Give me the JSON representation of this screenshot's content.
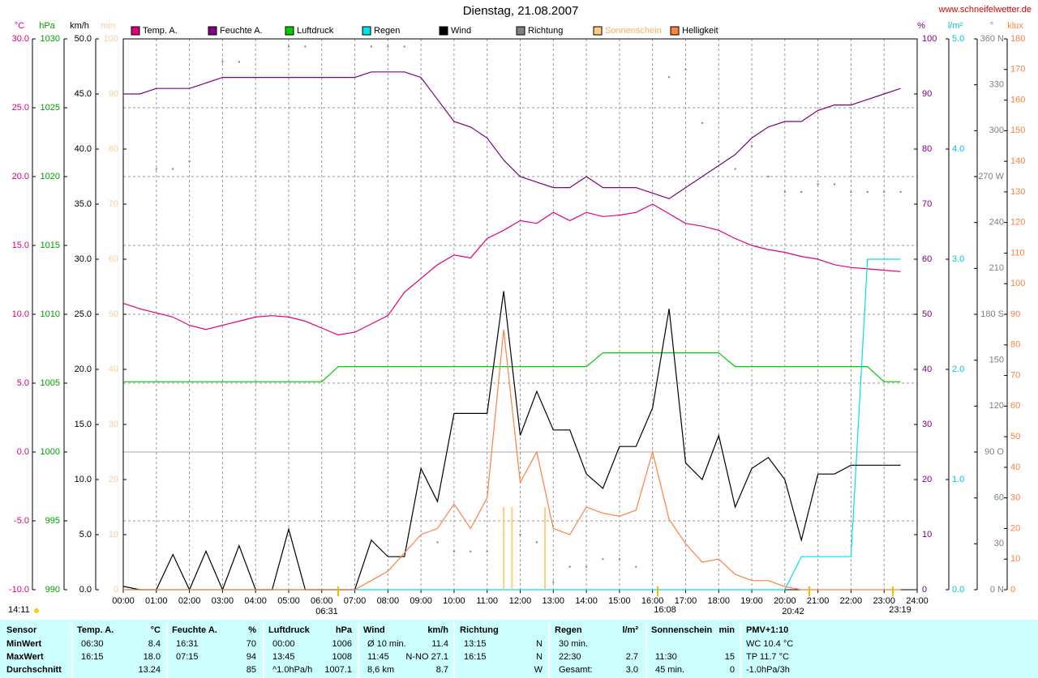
{
  "chart_data": {
    "type": "line",
    "title": "Dienstag, 21.08.2007",
    "source": "www.schneifelwetter.de",
    "grid": true,
    "grid_axis": "°C",
    "x": [
      0,
      0.5,
      1,
      1.5,
      2,
      2.5,
      3,
      3.5,
      4,
      4.5,
      5,
      5.5,
      6,
      6.5,
      7,
      7.5,
      8,
      8.5,
      9,
      9.5,
      10,
      10.5,
      11,
      11.5,
      12,
      12.5,
      13,
      13.5,
      14,
      14.5,
      15,
      15.5,
      16,
      16.5,
      17,
      17.5,
      18,
      18.5,
      19,
      19.5,
      20,
      20.5,
      21,
      21.5,
      22,
      22.5,
      23,
      23.5
    ],
    "xlim": [
      0,
      24
    ],
    "xticks": [
      {
        "value": 0,
        "label": "00:00"
      },
      {
        "value": 1,
        "label": "01:00"
      },
      {
        "value": 2,
        "label": "02:00"
      },
      {
        "value": 3,
        "label": "03:00"
      },
      {
        "value": 4,
        "label": "04:00"
      },
      {
        "value": 5,
        "label": "05:00"
      },
      {
        "value": 6,
        "label": "06:00"
      },
      {
        "value": 7,
        "label": "07:00"
      },
      {
        "value": 8,
        "label": "08:00"
      },
      {
        "value": 9,
        "label": "09:00"
      },
      {
        "value": 10,
        "label": "10:00"
      },
      {
        "value": 11,
        "label": "11:00"
      },
      {
        "value": 12,
        "label": "12:00"
      },
      {
        "value": 13,
        "label": "13:00"
      },
      {
        "value": 14,
        "label": "14:00"
      },
      {
        "value": 15,
        "label": "15:00"
      },
      {
        "value": 16,
        "label": "16:00"
      },
      {
        "value": 17,
        "label": "17:00"
      },
      {
        "value": 18,
        "label": "18:00"
      },
      {
        "value": 19,
        "label": "19:00"
      },
      {
        "value": 20,
        "label": "20:00"
      },
      {
        "value": 21,
        "label": "21:00"
      },
      {
        "value": 22,
        "label": "22:00"
      },
      {
        "value": 23,
        "label": "23:00"
      },
      {
        "value": 24,
        "label": "24:00"
      }
    ],
    "axes": [
      {
        "unit": "°C",
        "color": "#e0007a",
        "lim": [
          -10,
          30
        ],
        "ticks": [
          {
            "value": -10,
            "label": "-10.0"
          },
          {
            "value": -5,
            "label": "-5.0"
          },
          {
            "value": 0,
            "label": "0.0"
          },
          {
            "value": 5,
            "label": "5.0"
          },
          {
            "value": 10,
            "label": "10.0"
          },
          {
            "value": 15,
            "label": "15.0"
          },
          {
            "value": 20,
            "label": "20.0"
          },
          {
            "value": 25,
            "label": "25.0"
          },
          {
            "value": 30,
            "label": "30.0"
          }
        ]
      },
      {
        "unit": "hPa",
        "color": "#00a000",
        "lim": [
          990,
          1030
        ],
        "ticks": [
          990,
          995,
          1000,
          1005,
          1010,
          1015,
          1020,
          1025,
          1030
        ]
      },
      {
        "unit": "km/h",
        "color": "#000000",
        "lim": [
          0,
          50
        ],
        "ticks": [
          {
            "value": 0,
            "label": "0.0"
          },
          {
            "value": 5,
            "label": "5.0"
          },
          {
            "value": 10,
            "label": "10.0"
          },
          {
            "value": 15,
            "label": "15.0"
          },
          {
            "value": 20,
            "label": "20.0"
          },
          {
            "value": 25,
            "label": "25.0"
          },
          {
            "value": 30,
            "label": "30.0"
          },
          {
            "value": 35,
            "label": "35.0"
          },
          {
            "value": 40,
            "label": "40.0"
          },
          {
            "value": 45,
            "label": "45.0"
          },
          {
            "value": 50,
            "label": "50.0"
          }
        ]
      },
      {
        "unit": "min",
        "color": "#ffcc99",
        "lim": [
          0,
          100
        ],
        "ticks": [
          0,
          10,
          20,
          30,
          40,
          50,
          60,
          70,
          80,
          90,
          100
        ]
      },
      {
        "unit": "%",
        "color": "#800080",
        "lim": [
          0,
          100
        ],
        "ticks": [
          0,
          10,
          20,
          30,
          40,
          50,
          60,
          70,
          80,
          90,
          100
        ]
      },
      {
        "unit": "l/m²",
        "color": "#00c8c8",
        "lim": [
          0,
          5
        ],
        "ticks": [
          {
            "value": 0,
            "label": "0.0"
          },
          {
            "value": 1,
            "label": "1.0"
          },
          {
            "value": 2,
            "label": "2.0"
          },
          {
            "value": 3,
            "label": "3.0"
          },
          {
            "value": 4,
            "label": "4.0"
          },
          {
            "value": 5,
            "label": "5.0"
          }
        ]
      },
      {
        "unit": "°",
        "color": "#808080",
        "lim": [
          0,
          360
        ],
        "ticks": [
          {
            "value": 0,
            "label": "0 N"
          },
          30,
          60,
          {
            "value": 90,
            "label": "90 O"
          },
          120,
          150,
          {
            "value": 180,
            "label": "180 S"
          },
          210,
          240,
          {
            "value": 270,
            "label": "270 W"
          },
          300,
          330,
          {
            "value": 360,
            "label": "360 N"
          }
        ]
      },
      {
        "unit": "klux",
        "color": "#ff8040",
        "lim": [
          0,
          180
        ],
        "ticks": [
          0,
          10,
          20,
          30,
          40,
          50,
          60,
          70,
          80,
          90,
          100,
          110,
          120,
          130,
          140,
          150,
          160,
          170,
          180
        ]
      }
    ],
    "series": [
      {
        "name": "Temp. A.",
        "color": "#e0007a",
        "axis": "°C",
        "style": "line",
        "values": [
          10.8,
          10.4,
          10.1,
          9.8,
          9.2,
          8.9,
          9.2,
          9.5,
          9.8,
          9.9,
          9.8,
          9.5,
          9.0,
          8.5,
          8.7,
          9.3,
          9.9,
          11.6,
          12.6,
          13.6,
          14.3,
          14.1,
          15.5,
          16.1,
          16.8,
          16.6,
          17.4,
          16.8,
          17.4,
          17.1,
          17.2,
          17.4,
          18.0,
          17.3,
          16.6,
          16.4,
          16.1,
          15.5,
          15.0,
          14.7,
          14.5,
          14.2,
          14.0,
          13.6,
          13.4,
          13.3,
          13.2,
          13.1
        ]
      },
      {
        "name": "Feuchte A.",
        "color": "#800080",
        "axis": "%",
        "style": "line",
        "values": [
          90,
          90,
          91,
          91,
          91,
          92,
          93,
          93,
          93,
          93,
          93,
          93,
          93,
          93,
          93,
          94,
          94,
          94,
          93,
          89,
          85,
          84,
          82,
          78,
          75,
          74,
          73,
          73,
          75,
          73,
          73,
          73,
          72,
          71,
          73,
          75,
          77,
          79,
          82,
          84,
          85,
          85,
          87,
          88,
          88,
          89,
          90,
          91
        ]
      },
      {
        "name": "Luftdruck",
        "color": "#00cc00",
        "axis": "hPa",
        "style": "line",
        "values": [
          1005.1,
          1005.1,
          1005.1,
          1005.1,
          1005.1,
          1005.1,
          1005.1,
          1005.1,
          1005.1,
          1005.1,
          1005.1,
          1005.1,
          1005.1,
          1006.2,
          1006.2,
          1006.2,
          1006.2,
          1006.2,
          1006.2,
          1006.2,
          1006.2,
          1006.2,
          1006.2,
          1006.2,
          1006.2,
          1006.2,
          1006.2,
          1006.2,
          1006.2,
          1007.2,
          1007.2,
          1007.2,
          1007.2,
          1007.2,
          1007.2,
          1007.2,
          1007.2,
          1006.2,
          1006.2,
          1006.2,
          1006.2,
          1006.2,
          1006.2,
          1006.2,
          1006.2,
          1006.2,
          1005.1,
          1005.1
        ]
      },
      {
        "name": "Regen",
        "color": "#00e0e8",
        "axis": "l/m²",
        "style": "line",
        "values": [
          0,
          0,
          0,
          0,
          0,
          0,
          0,
          0,
          0,
          0,
          0,
          0,
          0,
          0,
          0,
          0,
          0,
          0,
          0,
          0,
          0,
          0,
          0,
          0,
          0,
          0,
          0,
          0,
          0,
          0,
          0,
          0,
          0,
          0,
          0,
          0,
          0,
          0,
          0,
          0,
          0,
          0.3,
          0.3,
          0.3,
          0.3,
          3.0,
          3.0,
          3.0
        ]
      },
      {
        "name": "Wind",
        "color": "#000000",
        "axis": "km/h",
        "style": "line",
        "values": [
          0.3,
          0,
          0,
          3.2,
          0,
          3.5,
          0,
          4.0,
          0,
          0,
          5.5,
          0,
          0,
          0,
          0,
          4.5,
          3.0,
          3.0,
          11.0,
          8.0,
          16.0,
          16.0,
          16.0,
          27.1,
          14.0,
          18.0,
          14.5,
          14.5,
          10.5,
          9.2,
          13.0,
          13.0,
          16.5,
          25.5,
          11.5,
          10.0,
          14.0,
          7.5,
          11.0,
          12.0,
          10.0,
          4.5,
          10.5,
          10.5,
          11.3,
          11.3,
          11.3,
          11.3
        ]
      },
      {
        "name": "Richtung",
        "color": "#808080",
        "axis": "°",
        "style": "dots",
        "values": [
          null,
          null,
          275,
          275,
          280,
          null,
          345,
          345,
          null,
          null,
          355,
          355,
          null,
          null,
          null,
          355,
          355,
          355,
          null,
          31,
          25,
          25,
          25,
          36,
          36,
          31,
          5,
          15,
          15,
          20,
          20,
          15,
          null,
          335,
          340,
          305,
          280,
          275,
          290,
          270,
          260,
          260,
          265,
          265,
          260,
          260,
          260,
          260
        ]
      },
      {
        "name": "Sonnenschein",
        "color": "#ffcc80",
        "axis": "min",
        "style": "bars",
        "x": [
          11.5,
          11.75,
          12.75
        ],
        "values": [
          15,
          15,
          15
        ]
      },
      {
        "name": "Helligkeit",
        "color": "#ff8040",
        "axis": "klux",
        "style": "line",
        "values": [
          0,
          0,
          0,
          0,
          0,
          0,
          0,
          0,
          0,
          0,
          0,
          0,
          0,
          0,
          0,
          3,
          6,
          12,
          18,
          20,
          28,
          20,
          30,
          85,
          35,
          45,
          20,
          18,
          27,
          25,
          24,
          26,
          45,
          23,
          15,
          9,
          10,
          5,
          3,
          3,
          1,
          0,
          0,
          0,
          0,
          0,
          0,
          0
        ]
      }
    ],
    "moon_note": "14:11",
    "annotations": [
      "06:31",
      "20:42",
      "16:08",
      "23:19"
    ]
  },
  "table": {
    "headers": [
      {
        "name": "Sensor"
      },
      {
        "name": "Temp. A.",
        "unit": "°C"
      },
      {
        "name": "Feuchte A.",
        "unit": "%"
      },
      {
        "name": "Luftdruck",
        "unit": "hPa"
      },
      {
        "name": "Wind",
        "unit": "km/h"
      },
      {
        "name": "Richtung"
      },
      {
        "name": "Regen",
        "unit": "l/m²"
      },
      {
        "name": "Sonnenschein",
        "unit": "min"
      },
      {
        "name": "PMV+1:10"
      }
    ],
    "rows": [
      {
        "label": "MinWert",
        "cells": [
          [
            "06:30",
            "8.4"
          ],
          [
            "16:31",
            "70"
          ],
          [
            "00:00",
            "1006"
          ],
          [
            "Ø 10 min.",
            "11.4"
          ],
          [
            "13:15",
            "N"
          ],
          [
            "30 min.",
            null
          ],
          [
            null,
            null
          ],
          [
            "WC 10.4 °C",
            null
          ]
        ]
      },
      {
        "label": "MaxWert",
        "cells": [
          [
            "16:15",
            "18.0"
          ],
          [
            "07:15",
            "94"
          ],
          [
            "13:45",
            "1008"
          ],
          [
            "11:45",
            "N-NO 27.1"
          ],
          [
            "16:15",
            "N"
          ],
          [
            "22:30",
            "2.7"
          ],
          [
            "11:30",
            "15"
          ],
          [
            "TP 11.7 °C",
            null
          ]
        ]
      },
      {
        "label": "Durchschnitt",
        "cells": [
          [
            null,
            "13.24"
          ],
          [
            null,
            "85"
          ],
          [
            "^1.0hPa/h",
            "1007.1"
          ],
          [
            "8,6 km",
            "8.7"
          ],
          [
            null,
            "W"
          ],
          [
            "Gesamt:",
            "3.0"
          ],
          [
            "45 min.",
            "0"
          ],
          [
            "-1.0hPa/3h",
            null
          ]
        ]
      }
    ]
  }
}
